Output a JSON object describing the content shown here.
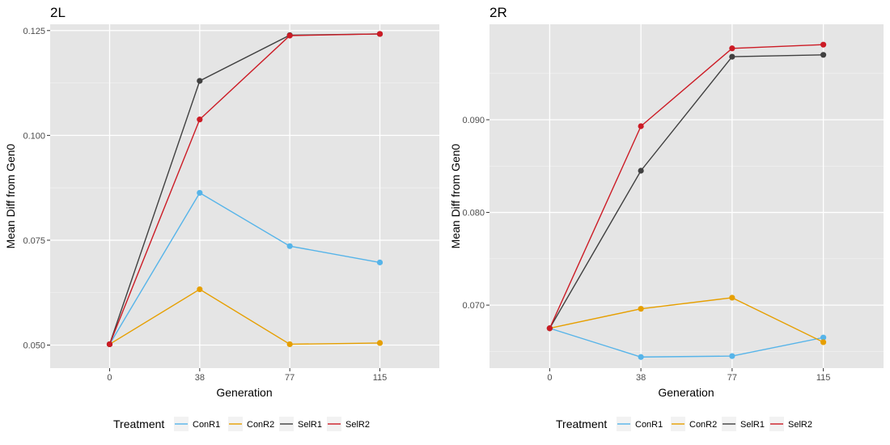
{
  "chart_data": [
    {
      "type": "line",
      "title": "2L",
      "xlabel": "Generation",
      "ylabel": "Mean Diff from Gen0",
      "x": [
        "0",
        "38",
        "77",
        "115"
      ],
      "ylim": [
        0.0445,
        0.1265
      ],
      "yticks": [
        "0.050",
        "0.075",
        "0.100",
        "0.125"
      ],
      "ytick_values": [
        0.05,
        0.075,
        0.1,
        0.125
      ],
      "grid": true,
      "series": [
        {
          "name": "ConR1",
          "color": "#56b4e9",
          "values": [
            0.0502,
            0.0863,
            0.0736,
            0.0697
          ]
        },
        {
          "name": "ConR2",
          "color": "#e69f00",
          "values": [
            0.0502,
            0.0633,
            0.0502,
            0.0505
          ]
        },
        {
          "name": "SelR1",
          "color": "#404040",
          "values": [
            0.0502,
            0.113,
            0.1239,
            0.1242
          ]
        },
        {
          "name": "SelR2",
          "color": "#cc1b25",
          "values": [
            0.0502,
            0.1038,
            0.1238,
            0.1242
          ]
        }
      ],
      "legend": {
        "title": "Treatment",
        "position": "bottom"
      }
    },
    {
      "type": "line",
      "title": "2R",
      "xlabel": "Generation",
      "ylabel": "Mean Diff from Gen0",
      "x": [
        "0",
        "38",
        "77",
        "115"
      ],
      "ylim": [
        0.0632,
        0.1003
      ],
      "yticks": [
        "0.070",
        "0.080",
        "0.090"
      ],
      "ytick_values": [
        0.07,
        0.08,
        0.09
      ],
      "grid": true,
      "series": [
        {
          "name": "ConR1",
          "color": "#56b4e9",
          "values": [
            0.0675,
            0.0644,
            0.0645,
            0.0665
          ]
        },
        {
          "name": "ConR2",
          "color": "#e69f00",
          "values": [
            0.0675,
            0.0696,
            0.0708,
            0.066
          ]
        },
        {
          "name": "SelR1",
          "color": "#404040",
          "values": [
            0.0675,
            0.0845,
            0.0968,
            0.097
          ]
        },
        {
          "name": "SelR2",
          "color": "#cc1b25",
          "values": [
            0.0675,
            0.0893,
            0.0977,
            0.0981
          ]
        }
      ],
      "legend": {
        "title": "Treatment",
        "position": "bottom"
      }
    }
  ]
}
